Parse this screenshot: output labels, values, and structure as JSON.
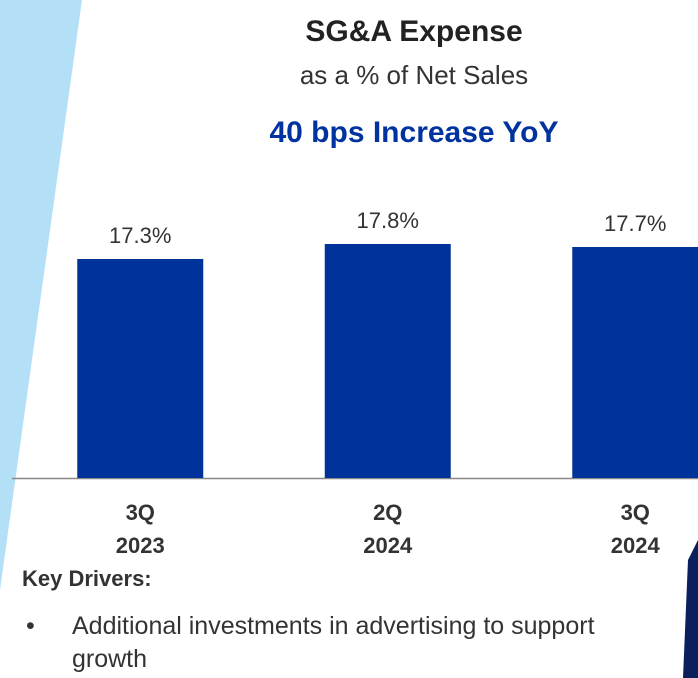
{
  "chart_data": {
    "type": "bar",
    "title": "SG&A Expense",
    "subtitle": "as a % of Net Sales",
    "annotation": "40 bps Increase YoY",
    "categories": [
      "3Q 2023",
      "2Q 2024",
      "3Q 2024"
    ],
    "values": [
      17.3,
      17.8,
      17.7
    ],
    "value_labels": [
      "17.3%",
      "17.8%",
      "17.7%"
    ],
    "color": "#003399",
    "ylim": [
      10,
      18
    ]
  },
  "notes": {
    "heading": "Key Drivers:",
    "bullets": [
      "Additional investments in advertising to support growth"
    ]
  }
}
